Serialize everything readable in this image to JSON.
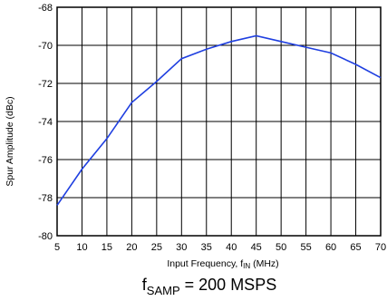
{
  "chart_data": {
    "type": "line",
    "xlabel_main": "Input Frequency, f",
    "xlabel_sub": "IN",
    "xlabel_tail": " (MHz)",
    "ylabel": "Spur Amplitude (dBc)",
    "caption_main": "f",
    "caption_sub": "SAMP",
    "caption_tail": " = 200 MSPS",
    "xlim": [
      5,
      70
    ],
    "ylim": [
      -80,
      -68
    ],
    "xticks": [
      5,
      10,
      15,
      20,
      25,
      30,
      35,
      40,
      45,
      50,
      55,
      60,
      65,
      70
    ],
    "yticks": [
      -80,
      -78,
      -76,
      -74,
      -72,
      -70,
      -68
    ],
    "grid": true,
    "line_color": "#1f3fe0",
    "series": [
      {
        "x": [
          5,
          10,
          15,
          20,
          25,
          30,
          35,
          40,
          45,
          50,
          55,
          60,
          65,
          70
        ],
        "y": [
          -78.4,
          -76.5,
          -74.9,
          -73.0,
          -71.9,
          -70.7,
          -70.2,
          -69.8,
          -69.5,
          -69.8,
          -70.1,
          -70.4,
          -71.0,
          -71.7
        ]
      }
    ]
  }
}
